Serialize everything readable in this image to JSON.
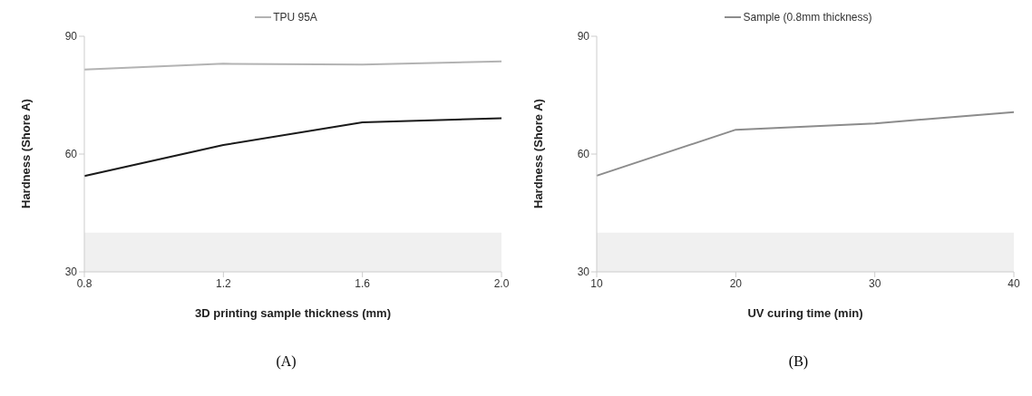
{
  "chart_data": [
    {
      "type": "line",
      "categories": [
        "0.8",
        "1.2",
        "1.6",
        "2.0"
      ],
      "xlabel": "3D printing sample thickness (mm)",
      "ylabel": "Hardness (Shore A)",
      "ylim": [
        30,
        90
      ],
      "yticks": [
        30,
        60,
        90
      ],
      "grid": false,
      "legend": "top",
      "marker": "none",
      "line_style": "solid",
      "series": [
        {
          "name": "TPU 95A",
          "color": "#b3b3b3",
          "values": [
            81.5,
            83.0,
            82.8,
            83.6
          ]
        },
        {
          "color": "#1a1a1a",
          "values": [
            54.4,
            62.3,
            68.1,
            69.1
          ]
        }
      ],
      "bands": [
        {
          "axis": "y",
          "from": 30,
          "to": 40,
          "color": "#f0f0f0"
        }
      ],
      "annotations": [
        "(A)"
      ]
    },
    {
      "type": "line",
      "categories": [
        "10",
        "20",
        "30",
        "40"
      ],
      "xlabel": "UV curing time (min)",
      "ylabel": "Hardness (Shore A)",
      "ylim": [
        30,
        90
      ],
      "yticks": [
        30,
        60,
        90
      ],
      "grid": false,
      "legend": "top",
      "marker": "none",
      "line_style": "solid",
      "series": [
        {
          "name": "Sample (0.8mm thickness)",
          "color": "#8c8c8c",
          "values": [
            54.5,
            66.2,
            67.8,
            70.7
          ]
        }
      ],
      "bands": [
        {
          "axis": "y",
          "from": 30,
          "to": 40,
          "color": "#f0f0f0"
        }
      ],
      "annotations": [
        "(B)"
      ]
    }
  ]
}
